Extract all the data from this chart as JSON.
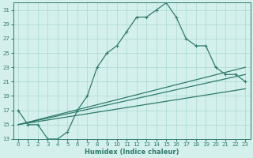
{
  "xlabel": "Humidex (Indice chaleur)",
  "bg_color": "#d4f0ec",
  "grid_color": "#a8d8d0",
  "line_color": "#2e7b6e",
  "xlim": [
    -0.5,
    23.5
  ],
  "ylim": [
    13,
    32
  ],
  "xticks": [
    0,
    1,
    2,
    3,
    4,
    5,
    6,
    7,
    8,
    9,
    10,
    11,
    12,
    13,
    14,
    15,
    16,
    17,
    18,
    19,
    20,
    21,
    22,
    23
  ],
  "yticks": [
    13,
    15,
    17,
    19,
    21,
    23,
    25,
    27,
    29,
    31
  ],
  "main_line": {
    "x": [
      0,
      1,
      2,
      3,
      4,
      5,
      6,
      7,
      8,
      9,
      10,
      11,
      12,
      13,
      14,
      15,
      16,
      17,
      18,
      19,
      20,
      21,
      22,
      23
    ],
    "y": [
      17,
      15,
      15,
      13,
      13,
      14,
      17,
      19,
      23,
      25,
      26,
      28,
      30,
      30,
      31,
      32,
      30,
      27,
      26,
      26,
      23,
      22,
      22,
      21
    ],
    "marker": "+"
  },
  "line2": {
    "x": [
      0,
      23
    ],
    "y": [
      15,
      20
    ]
  },
  "line3": {
    "x": [
      0,
      23
    ],
    "y": [
      15,
      22
    ]
  },
  "line4": {
    "x": [
      0,
      23
    ],
    "y": [
      15,
      23
    ]
  }
}
